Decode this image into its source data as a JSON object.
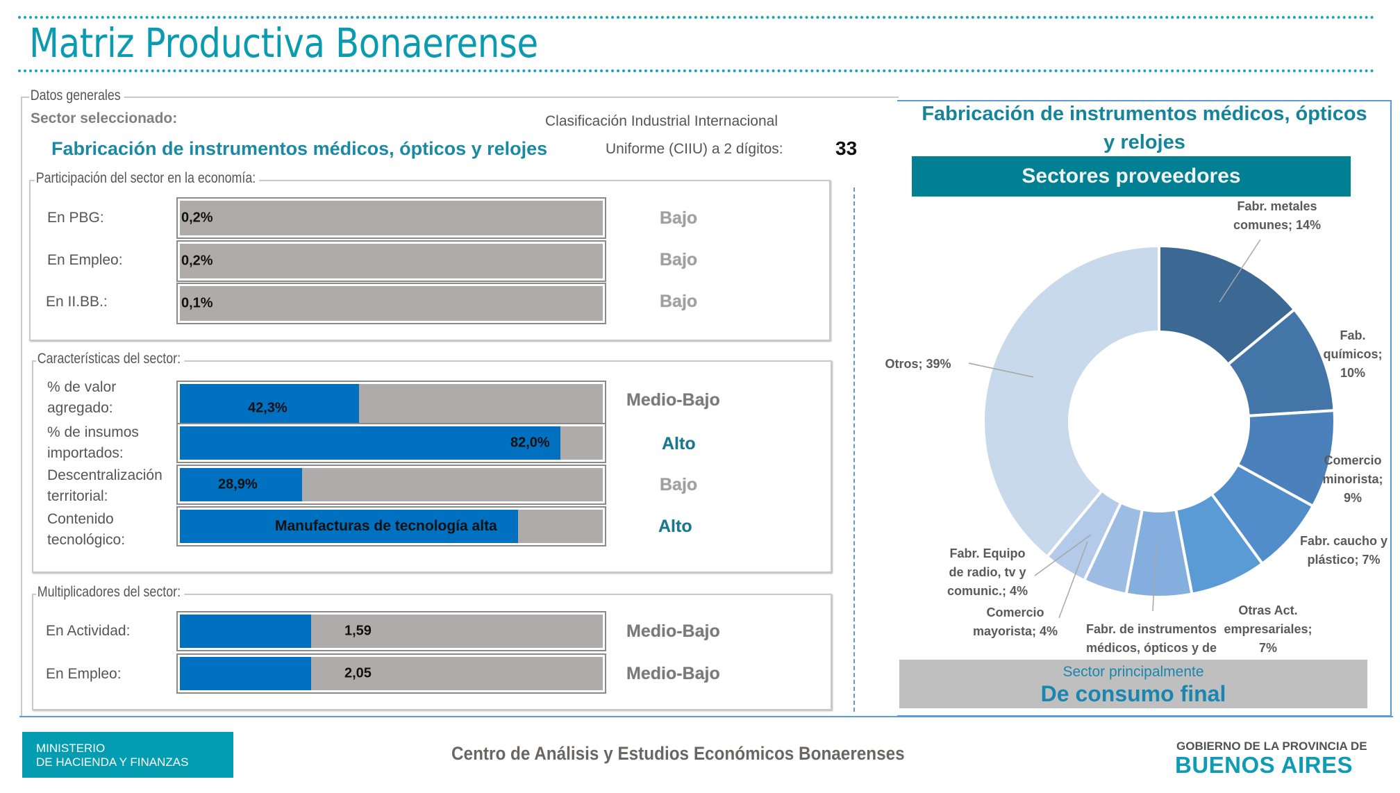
{
  "header": {
    "title": "Matriz Productiva Bonaerense"
  },
  "datos_generales": {
    "legend": "Datos generales",
    "sector_label": "Sector seleccionado:",
    "sector_name": "Fabricación de instrumentos médicos, ópticos y relojes",
    "ciiu_line1": "Clasificación Industrial Internacional",
    "ciiu_line2": "Uniforme (CIIU) a 2 dígitos:",
    "ciiu_code": "33"
  },
  "participacion": {
    "legend": "Participación del sector en la economía:",
    "rows": [
      {
        "label": "En PBG:",
        "value": "0,2%",
        "fill": 0.0,
        "level": "Bajo"
      },
      {
        "label": "En Empleo:",
        "value": "0,2%",
        "fill": 0.0,
        "level": "Bajo"
      },
      {
        "label": "En II.BB.:",
        "value": "0,1%",
        "fill": 0.0,
        "level": "Bajo"
      }
    ]
  },
  "caracteristicas": {
    "legend": "Características del sector:",
    "rows": [
      {
        "label1": "% de valor",
        "label2": "agregado:",
        "value": "42,3%",
        "fill": 0.423,
        "level": "Medio-Bajo"
      },
      {
        "label1": "% de insumos",
        "label2": "importados:",
        "value": "82,0%",
        "fill": 0.9,
        "level": "Alto"
      },
      {
        "label1": "Descentralización",
        "label2": "territorial:",
        "value": "28,9%",
        "fill": 0.289,
        "level": "Bajo"
      },
      {
        "label1": "Contenido",
        "label2": "tecnológico:",
        "value": "Manufacturas de tecnología alta",
        "fill": 0.8,
        "level": "Alto"
      }
    ]
  },
  "multiplicadores": {
    "legend": "Multiplicadores del sector:",
    "rows": [
      {
        "label": "En Actividad:",
        "value": "1,59",
        "fill": 0.31,
        "level": "Medio-Bajo"
      },
      {
        "label": "En Empleo:",
        "value": "2,05",
        "fill": 0.31,
        "level": "Medio-Bajo"
      }
    ]
  },
  "chart_panel": {
    "title_line1": "Fabricación de instrumentos médicos, ópticos",
    "title_line2": "y relojes",
    "subtitle": "Sectores proveedores",
    "sector_principal_label": "Sector principalmente",
    "sector_principal_value": "De consumo final"
  },
  "chart_data": {
    "type": "pie",
    "donut": true,
    "title": "Sectores proveedores",
    "unit": "%",
    "categories": [
      "Fabr. metales comunes",
      "Fab. químicos",
      "Comercio minorista",
      "Fabr. caucho y plástico",
      "Otras Act. empresariales",
      "Fabr. de instrumentos médicos, ópticos y de",
      "Comercio mayorista",
      "Fabr. Equipo de radio, tv y comunic.",
      "Otros"
    ],
    "values": [
      14,
      10,
      9,
      7,
      7,
      6,
      4,
      4,
      39
    ],
    "labels": [
      {
        "lines": [
          "Fabr. metales",
          "comunes; 14%"
        ]
      },
      {
        "lines": [
          "Fab.",
          "químicos;",
          "10%"
        ]
      },
      {
        "lines": [
          "Comercio",
          "minorista;",
          "9%"
        ]
      },
      {
        "lines": [
          "Fabr. caucho y",
          "plástico; 7%"
        ]
      },
      {
        "lines": [
          "Otras Act.",
          "empresariales;",
          "7%"
        ]
      },
      {
        "lines": [
          "Fabr. de instrumentos",
          "médicos, ópticos y de"
        ]
      },
      {
        "lines": [
          "Comercio",
          "mayorista; 4%"
        ]
      },
      {
        "lines": [
          "Fabr. Equipo",
          "de radio, tv y",
          "comunic.; 4%"
        ]
      },
      {
        "lines": [
          "Otros; 39%"
        ]
      }
    ],
    "colors": [
      "#3c6894",
      "#4475a8",
      "#4a81ba",
      "#508dca",
      "#5b9bd5",
      "#84aedd",
      "#9dbce3",
      "#b3cae8",
      "#c9d9ec"
    ]
  },
  "footer": {
    "ministerio_line1": "MINISTERIO",
    "ministerio_line2": "DE HACIENDA Y FINANZAS",
    "center": "Centro de Análisis y Estudios Económicos Bonaerenses",
    "gob_line1": "GOBIERNO DE LA PROVINCIA DE",
    "gob_line2": "BUENOS AIRES"
  },
  "colors": {
    "brand_teal": "#0a9bb0",
    "bar_fill": "#0070c0",
    "bar_track": "#afabab",
    "level_alto": "#17788e"
  }
}
